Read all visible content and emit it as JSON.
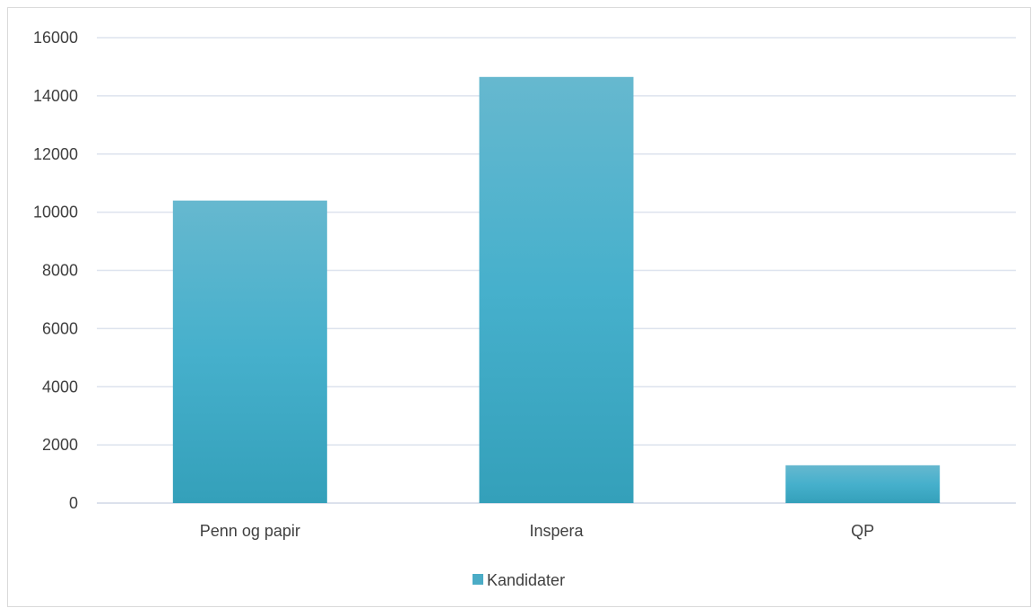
{
  "chart_data": {
    "type": "bar",
    "title": "",
    "xlabel": "",
    "ylabel": "",
    "categories": [
      "Penn og papir",
      "Inspera",
      "QP"
    ],
    "series": [
      {
        "name": "Kandidater",
        "values": [
          10400,
          14650,
          1300
        ],
        "color": "#4bacc6"
      }
    ],
    "ylim": [
      0,
      16000
    ],
    "yticks": [
      "0",
      "2000",
      "4000",
      "6000",
      "8000",
      "10000",
      "12000",
      "14000",
      "16000"
    ],
    "grid": true,
    "legend_position": "bottom"
  }
}
